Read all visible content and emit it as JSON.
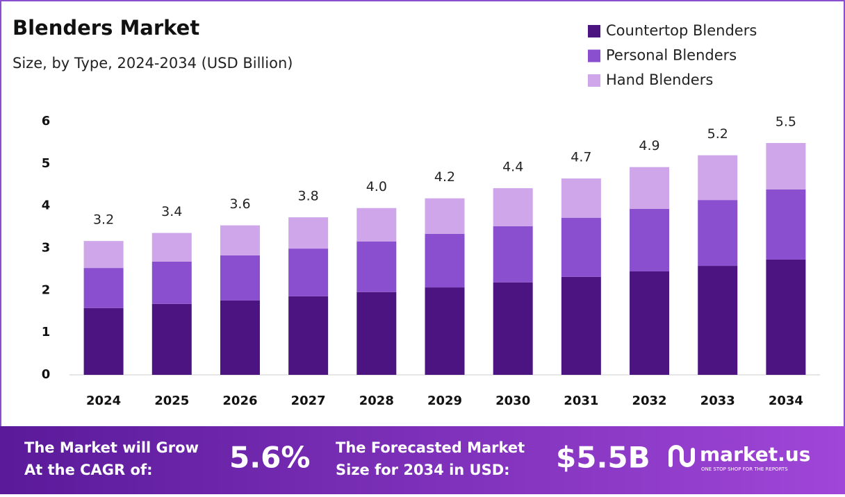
{
  "chart_data": {
    "type": "stacked_bar",
    "title": "Blenders Market",
    "subtitle": "Size, by Type, 2024-2034 (USD Billion)",
    "categories": [
      "2024",
      "2025",
      "2026",
      "2027",
      "2028",
      "2029",
      "2030",
      "2031",
      "2032",
      "2033",
      "2034"
    ],
    "series": [
      {
        "name": "Countertop Blenders",
        "color": "#4b1480",
        "values": [
          1.58,
          1.68,
          1.76,
          1.86,
          1.96,
          2.07,
          2.19,
          2.32,
          2.45,
          2.58,
          2.73
        ]
      },
      {
        "name": "Personal Blenders",
        "color": "#8a4fcf",
        "values": [
          0.95,
          1.0,
          1.07,
          1.13,
          1.2,
          1.27,
          1.33,
          1.4,
          1.48,
          1.56,
          1.66
        ]
      },
      {
        "name": "Hand Blenders",
        "color": "#cfa6ea",
        "values": [
          0.64,
          0.68,
          0.71,
          0.74,
          0.79,
          0.84,
          0.9,
          0.93,
          0.99,
          1.06,
          1.1
        ]
      }
    ],
    "totals": {
      "values": [
        3.2,
        3.4,
        3.6,
        3.8,
        4.0,
        4.2,
        4.4,
        4.7,
        4.9,
        5.2,
        5.5
      ],
      "value_labels": [
        "3.2",
        "3.4",
        "3.6",
        "3.8",
        "4.0",
        "4.2",
        "4.4",
        "4.7",
        "4.9",
        "5.2",
        "5.5"
      ]
    },
    "ylim": [
      0,
      6
    ],
    "yticks": [
      0,
      1,
      2,
      3,
      4,
      5,
      6
    ],
    "grid": false,
    "legend": "top-right"
  },
  "footer": {
    "cagr_label": [
      "The Market will Grow",
      "At the CAGR of:"
    ],
    "cagr_value": "5.6%",
    "forecast_label": [
      "The Forecasted Market",
      "Size for 2034 in USD:"
    ],
    "forecast_value": "$5.5B",
    "brand": "market.us",
    "tagline": "ONE STOP SHOP FOR THE REPORTS"
  }
}
